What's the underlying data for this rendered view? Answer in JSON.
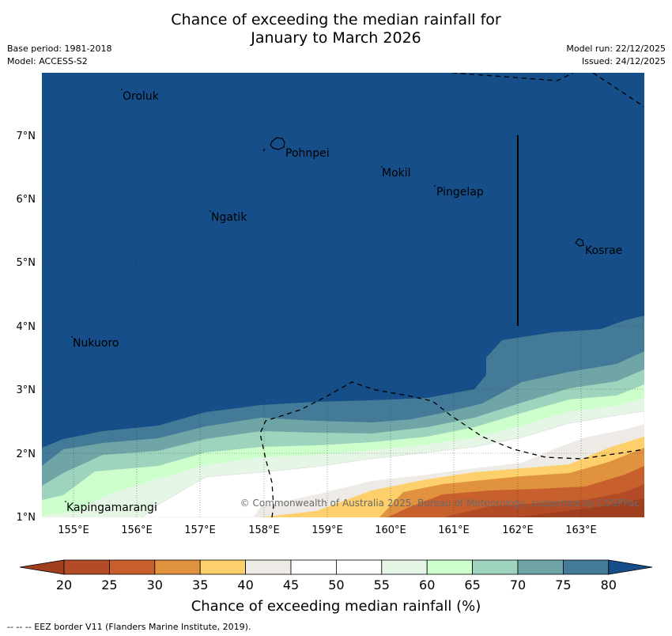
{
  "title_line1": "Chance of exceeding the median rainfall for",
  "title_line2": "January to March 2026",
  "base_period": "Base period: 1981-2018",
  "model": "Model: ACCESS-S2",
  "model_run": "Model run: 22/12/2025",
  "issued": "Issued: 24/12/2025",
  "copyright": "© Commonwealth of Australia 2025, Bureau of Meteorology, supported by COSPPac",
  "footnote": "--  --  -- EEZ border V11 (Flanders Marine Institute, 2019).",
  "map": {
    "lon_range": [
      154.5,
      164.0
    ],
    "lat_range": [
      1.0,
      8.0
    ],
    "lon_ticks": [
      "155°E",
      "156°E",
      "157°E",
      "158°E",
      "159°E",
      "160°E",
      "161°E",
      "162°E",
      "163°E"
    ],
    "lat_ticks": [
      "7°N",
      "6°N",
      "5°N",
      "4°N",
      "3°N",
      "2°N",
      "1°N"
    ],
    "places": [
      {
        "name": "Oroluk",
        "lon": 155.75,
        "lat": 7.62
      },
      {
        "name": "Pohnpei",
        "lon": 158.3,
        "lat": 6.82
      },
      {
        "name": "Mokil",
        "lon": 159.8,
        "lat": 6.6
      },
      {
        "name": "Pingelap",
        "lon": 160.7,
        "lat": 6.3
      },
      {
        "name": "Ngatik",
        "lon": 157.1,
        "lat": 5.9
      },
      {
        "name": "Kosrae",
        "lon": 162.97,
        "lat": 5.3
      },
      {
        "name": "Nukuoro",
        "lon": 154.97,
        "lat": 3.86
      },
      {
        "name": "Kapingamarangi",
        "lon": 154.85,
        "lat": 1.1
      }
    ]
  },
  "colorbar": {
    "label": "Chance of exceeding median rainfall (%)",
    "ticks": [
      "20",
      "25",
      "30",
      "35",
      "40",
      "45",
      "50",
      "55",
      "60",
      "65",
      "70",
      "75",
      "80"
    ],
    "colors": [
      "#a03f1e",
      "#b34c26",
      "#c8602d",
      "#e0923e",
      "#fdd06b",
      "#eeebe6",
      "#ffffff",
      "#ffffff",
      "#e6f6e6",
      "#ccffcc",
      "#9ed4bd",
      "#6fa5a6",
      "#437a98",
      "#154e88"
    ]
  }
}
